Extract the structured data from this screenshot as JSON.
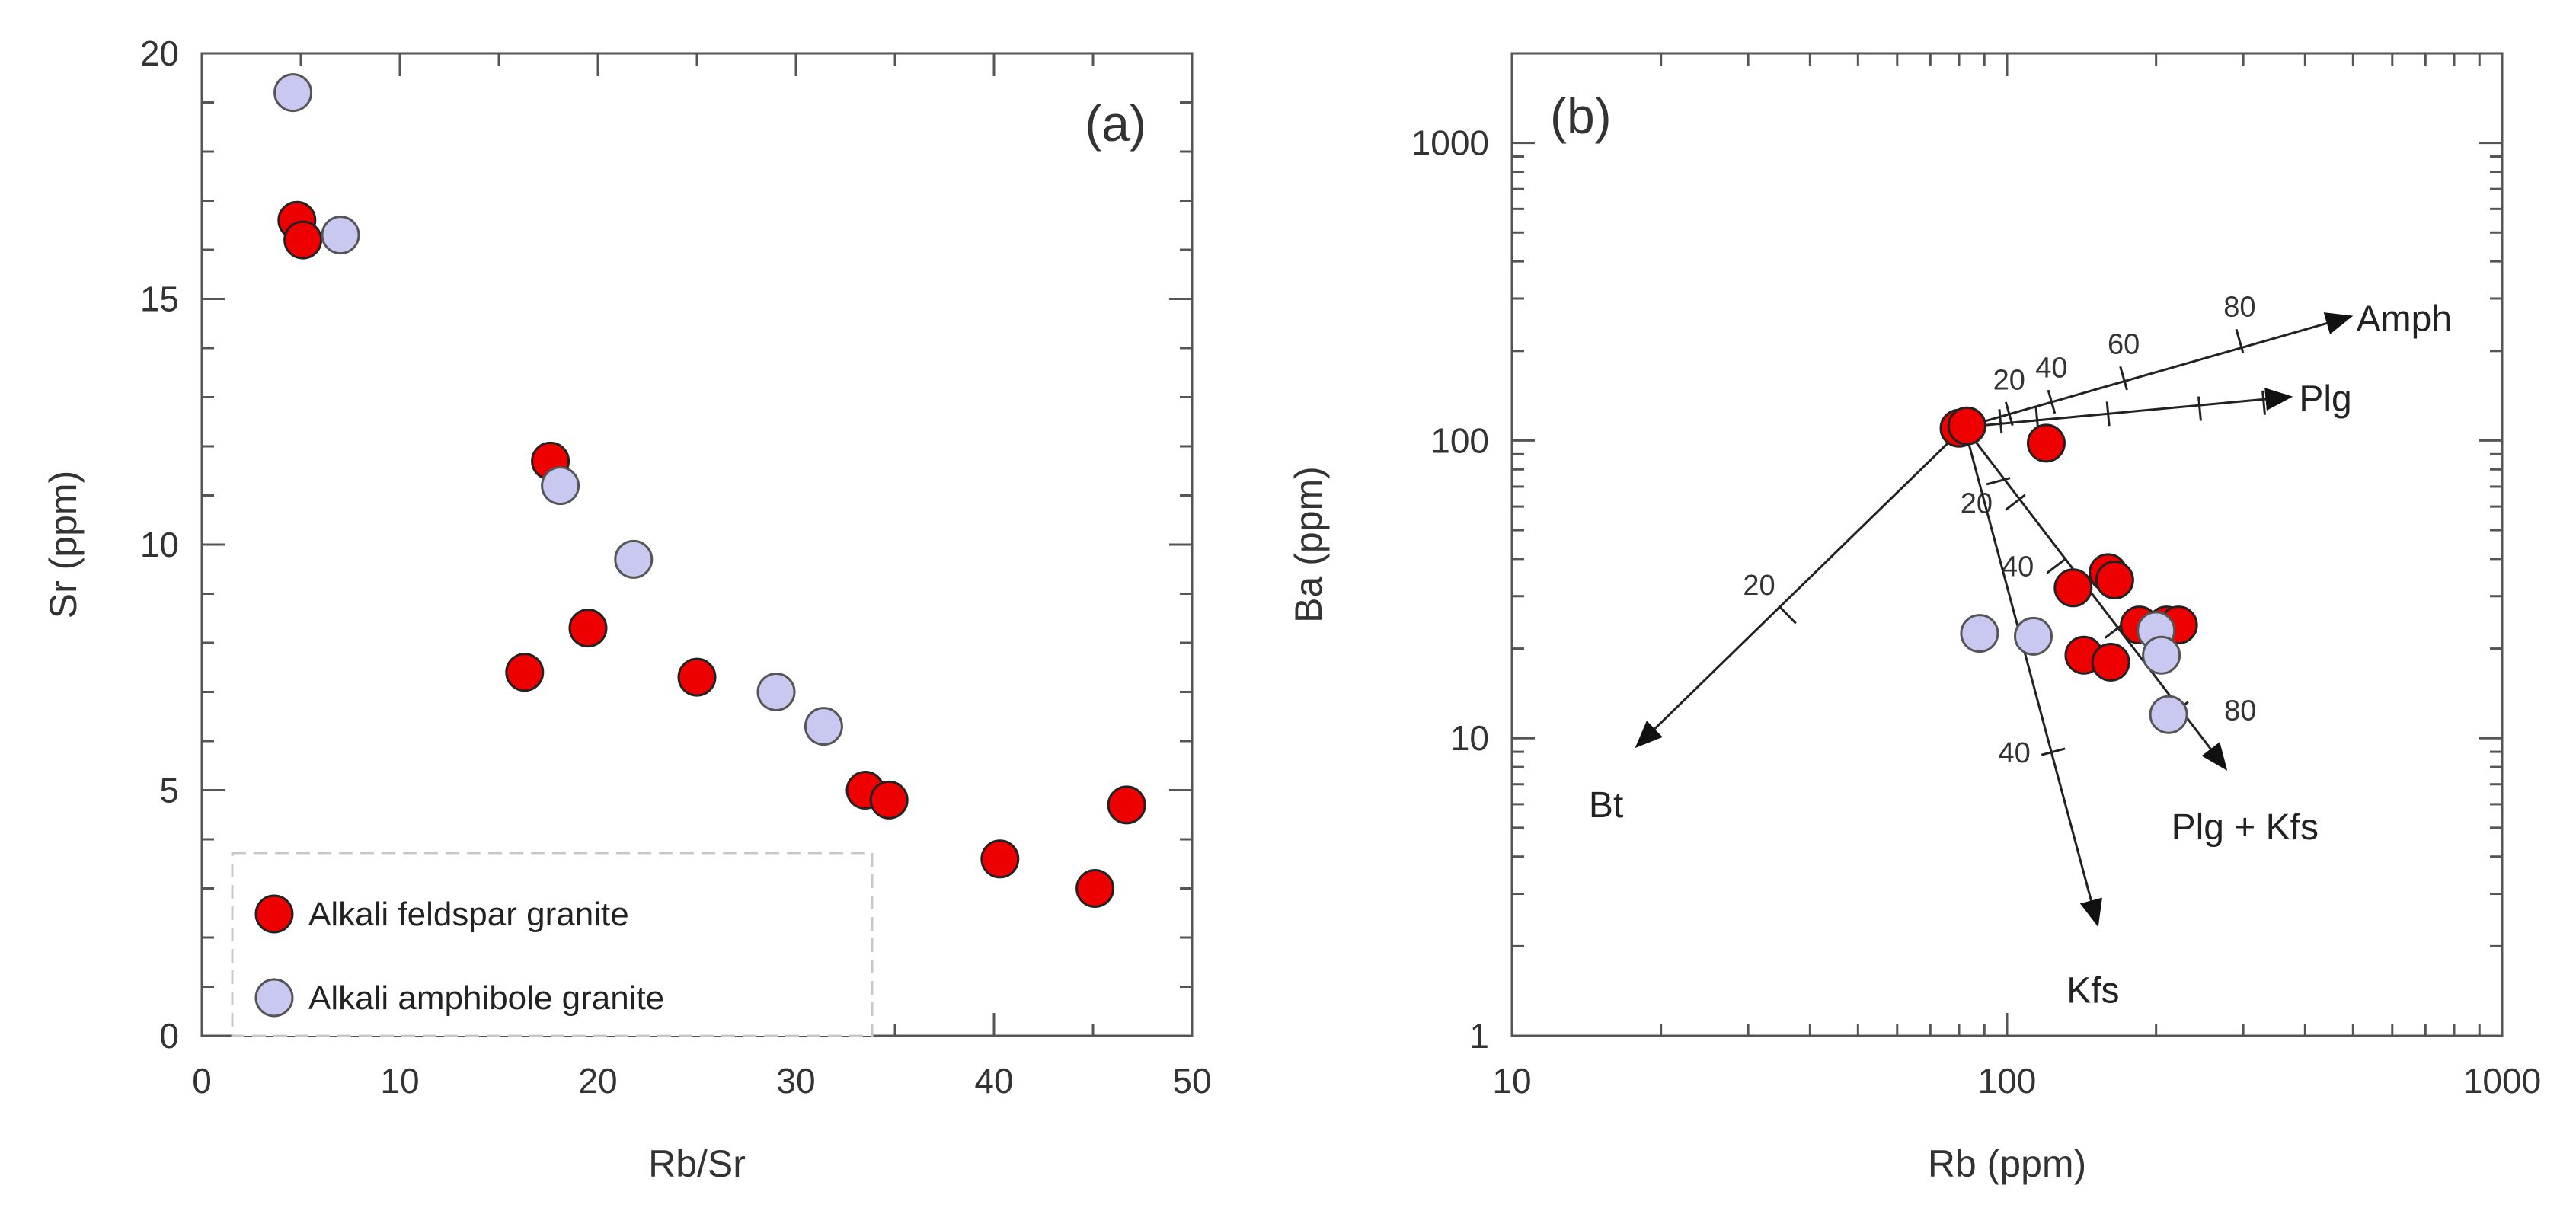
{
  "chart_data": [
    {
      "type": "scatter",
      "panel_label": "(a)",
      "xlabel": "Rb/Sr",
      "ylabel": "Sr (ppm)",
      "xlim": [
        0,
        50
      ],
      "ylim": [
        0,
        20
      ],
      "x_ticks": [
        0,
        10,
        20,
        30,
        40,
        50
      ],
      "x_tick_labels": [
        "0",
        "10",
        "20",
        "30",
        "40",
        "50"
      ],
      "y_ticks": [
        0,
        5,
        10,
        15,
        20
      ],
      "y_tick_labels": [
        "0",
        "5",
        "10",
        "15",
        "20"
      ],
      "legend_position": "bottom-left",
      "series": [
        {
          "name": "Alkali feldspar granite",
          "color": "#ee0000",
          "points": [
            {
              "x": 4.8,
              "y": 16.6
            },
            {
              "x": 5.1,
              "y": 16.2
            },
            {
              "x": 17.6,
              "y": 11.7
            },
            {
              "x": 16.3,
              "y": 7.4
            },
            {
              "x": 19.5,
              "y": 8.3
            },
            {
              "x": 25.0,
              "y": 7.3
            },
            {
              "x": 33.5,
              "y": 5.0
            },
            {
              "x": 34.7,
              "y": 4.8
            },
            {
              "x": 40.3,
              "y": 3.6
            },
            {
              "x": 45.1,
              "y": 3.0
            },
            {
              "x": 46.7,
              "y": 4.7
            }
          ]
        },
        {
          "name": "Alkali amphibole granite",
          "color": "#c8c8f0",
          "points": [
            {
              "x": 4.6,
              "y": 19.2
            },
            {
              "x": 7.0,
              "y": 16.3
            },
            {
              "x": 18.1,
              "y": 11.2
            },
            {
              "x": 21.8,
              "y": 9.7
            },
            {
              "x": 29.0,
              "y": 7.0
            },
            {
              "x": 31.4,
              "y": 6.3
            }
          ]
        }
      ]
    },
    {
      "type": "scatter",
      "panel_label": "(b)",
      "xlabel": "Rb (ppm)",
      "ylabel": "Ba (ppm)",
      "xscale": "log",
      "yscale": "log",
      "xlim": [
        10,
        1000
      ],
      "ylim": [
        1,
        2000
      ],
      "x_ticks": [
        10,
        100,
        1000
      ],
      "x_tick_labels": [
        "10",
        "100",
        "1000"
      ],
      "y_ticks": [
        1,
        10,
        100,
        1000
      ],
      "y_tick_labels": [
        "1",
        "10",
        "100",
        "1000"
      ],
      "series": [
        {
          "name": "Alkali feldspar granite",
          "color": "#ee0000",
          "points": [
            {
              "x": 80,
              "y": 110
            },
            {
              "x": 83,
              "y": 112
            },
            {
              "x": 120,
              "y": 98
            },
            {
              "x": 136,
              "y": 32
            },
            {
              "x": 160,
              "y": 36
            },
            {
              "x": 165,
              "y": 34
            },
            {
              "x": 143,
              "y": 19
            },
            {
              "x": 162,
              "y": 18
            },
            {
              "x": 185,
              "y": 24
            },
            {
              "x": 210,
              "y": 24
            },
            {
              "x": 222,
              "y": 24
            }
          ]
        },
        {
          "name": "Alkali amphibole granite",
          "color": "#c8c8f0",
          "points": [
            {
              "x": 88,
              "y": 22.5
            },
            {
              "x": 113,
              "y": 22
            },
            {
              "x": 200,
              "y": 23
            },
            {
              "x": 205,
              "y": 19
            },
            {
              "x": 212,
              "y": 12
            }
          ]
        }
      ],
      "vectors": [
        {
          "name": "Amph",
          "from": {
            "x": 82,
            "y": 111
          },
          "to": {
            "x": 490,
            "y": 260
          },
          "ticks": [
            {
              "pct": "20",
              "x": 101,
              "y": 123
            },
            {
              "pct": "40",
              "x": 123,
              "y": 135
            },
            {
              "pct": "60",
              "x": 172,
              "y": 162
            },
            {
              "pct": "80",
              "x": 295,
              "y": 216
            }
          ],
          "tick_labels_shown": [
            "20",
            "40",
            "60",
            "80"
          ]
        },
        {
          "name": "Plg",
          "from": {
            "x": 82,
            "y": 111
          },
          "to": {
            "x": 370,
            "y": 140
          },
          "ticks": [
            {
              "pct": "20",
              "x": 97,
              "y": 116
            },
            {
              "pct": "40",
              "x": 115,
              "y": 118
            },
            {
              "pct": "60",
              "x": 160,
              "y": 123
            },
            {
              "pct": "80",
              "x": 245,
              "y": 128
            },
            {
              "pct": "90",
              "x": 330,
              "y": 134
            }
          ],
          "tick_labels_shown": []
        },
        {
          "name": "Plg + Kfs",
          "from": {
            "x": 82,
            "y": 111
          },
          "to": {
            "x": 275,
            "y": 8
          },
          "ticks": [
            {
              "pct": "20",
              "x": 104,
              "y": 62
            },
            {
              "pct": "40",
              "x": 126,
              "y": 38
            },
            {
              "pct": "60",
              "x": 165,
              "y": 23
            },
            {
              "pct": "80",
              "x": 222,
              "y": 12.5
            }
          ],
          "tick_labels_shown": [
            "20",
            "40",
            "80"
          ]
        },
        {
          "name": "Kfs",
          "from": {
            "x": 82,
            "y": 111
          },
          "to": {
            "x": 152,
            "y": 2.4
          },
          "ticks": [
            {
              "pct": "20",
              "x": 96,
              "y": 73
            },
            {
              "pct": "40",
              "x": 124,
              "y": 9
            }
          ],
          "tick_labels_shown": [
            "40"
          ]
        },
        {
          "name": "Bt",
          "from": {
            "x": 82,
            "y": 111
          },
          "to": {
            "x": 18,
            "y": 9.5
          },
          "ticks": [
            {
              "pct": "20",
              "x": 36,
              "y": 26
            }
          ],
          "tick_labels_shown": [
            "20"
          ]
        }
      ]
    }
  ]
}
